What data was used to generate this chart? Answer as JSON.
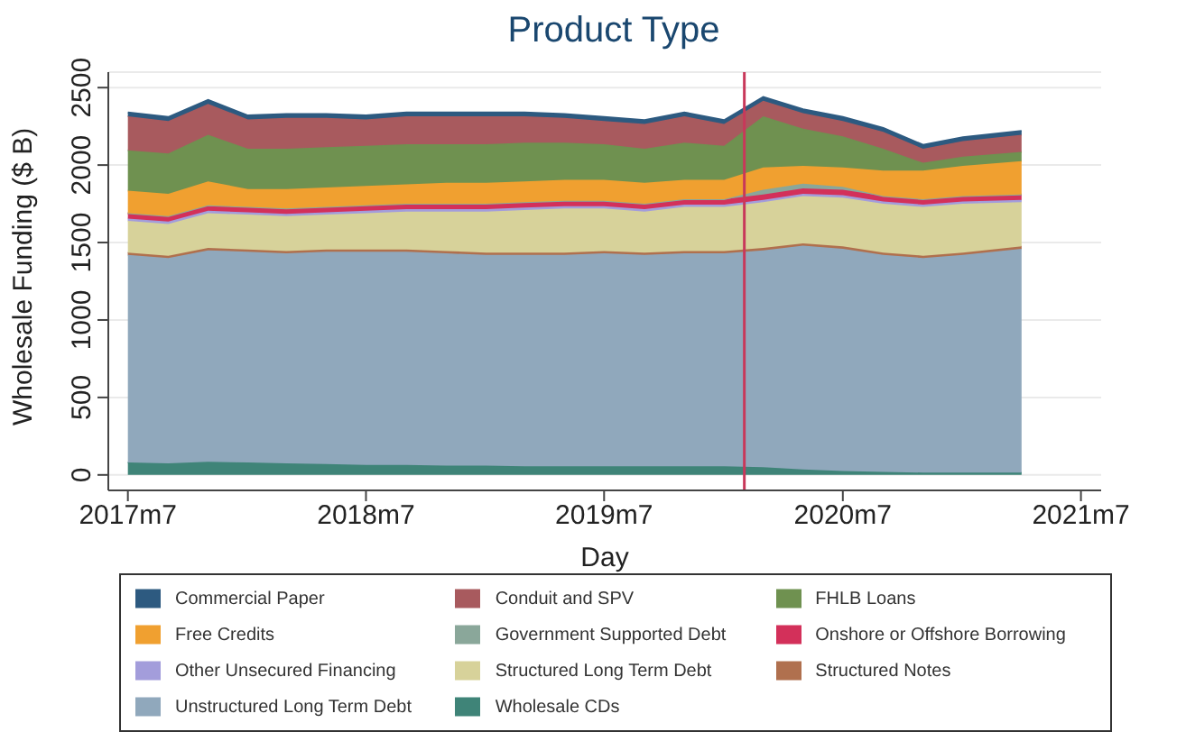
{
  "chart_data": {
    "type": "area",
    "stacked": true,
    "title": "Product Type",
    "xlabel": "Day",
    "ylabel": "Wholesale Funding ($ B)",
    "x": [
      "2017-07",
      "2017-09",
      "2017-11",
      "2018-01",
      "2018-03",
      "2018-05",
      "2018-07",
      "2018-09",
      "2018-11",
      "2019-01",
      "2019-03",
      "2019-05",
      "2019-07",
      "2019-09",
      "2019-11",
      "2020-01",
      "2020-03",
      "2020-05",
      "2020-07",
      "2020-09",
      "2020-11",
      "2021-01",
      "2021-04"
    ],
    "xlim": [
      "2017-06",
      "2021-08"
    ],
    "xticks": [
      {
        "value": "2017-07",
        "label": "2017m7"
      },
      {
        "value": "2018-07",
        "label": "2018m7"
      },
      {
        "value": "2019-07",
        "label": "2019m7"
      },
      {
        "value": "2020-07",
        "label": "2020m7"
      },
      {
        "value": "2021-07",
        "label": "2021m7"
      }
    ],
    "ylim": [
      -100,
      2600
    ],
    "yticks": [
      0,
      500,
      1000,
      1500,
      2000,
      2500
    ],
    "grid": "y",
    "legend": "bottom",
    "ref_lines": [
      {
        "axis": "x",
        "value": "2020-02",
        "color": "#c8385a"
      }
    ],
    "series": [
      {
        "name": "Wholesale CDs",
        "color": "#3f8478",
        "values": [
          80,
          75,
          85,
          80,
          75,
          70,
          65,
          65,
          60,
          60,
          55,
          55,
          55,
          55,
          55,
          55,
          50,
          35,
          25,
          20,
          15,
          15,
          15
        ]
      },
      {
        "name": "Unstructured Long Term Debt",
        "color": "#90a8bc",
        "values": [
          1340,
          1325,
          1365,
          1360,
          1355,
          1370,
          1375,
          1375,
          1370,
          1360,
          1365,
          1365,
          1375,
          1365,
          1375,
          1375,
          1400,
          1445,
          1435,
          1400,
          1385,
          1405,
          1445
        ]
      },
      {
        "name": "Structured Notes",
        "color": "#b0704e",
        "values": [
          15,
          15,
          15,
          15,
          15,
          15,
          15,
          15,
          15,
          15,
          15,
          15,
          15,
          15,
          15,
          15,
          15,
          15,
          15,
          15,
          15,
          15,
          15
        ]
      },
      {
        "name": "Structured Long Term Debt",
        "color": "#d7d29a",
        "values": [
          205,
          205,
          225,
          225,
          225,
          225,
          235,
          245,
          255,
          265,
          275,
          285,
          275,
          265,
          285,
          285,
          295,
          305,
          315,
          315,
          315,
          315,
          285
        ]
      },
      {
        "name": "Other Unsecured Financing",
        "color": "#a39ddb",
        "values": [
          15,
          15,
          15,
          15,
          15,
          15,
          15,
          15,
          15,
          15,
          15,
          15,
          15,
          15,
          15,
          15,
          15,
          15,
          15,
          15,
          15,
          15,
          15
        ]
      },
      {
        "name": "Onshore or Offshore Borrowing",
        "color": "#d3305a",
        "values": [
          35,
          35,
          35,
          35,
          35,
          35,
          35,
          35,
          35,
          35,
          35,
          35,
          35,
          35,
          35,
          35,
          35,
          35,
          35,
          35,
          35,
          35,
          35
        ]
      },
      {
        "name": "Government Supported Debt",
        "color": "#8aa79a",
        "values": [
          0,
          0,
          0,
          0,
          0,
          0,
          0,
          0,
          0,
          0,
          0,
          0,
          0,
          0,
          0,
          0,
          30,
          30,
          20,
          0,
          0,
          0,
          0
        ]
      },
      {
        "name": "Free Credits",
        "color": "#f0a030",
        "values": [
          145,
          145,
          155,
          115,
          125,
          125,
          125,
          125,
          135,
          135,
          135,
          135,
          135,
          135,
          125,
          125,
          145,
          115,
          125,
          165,
          185,
          195,
          215
        ]
      },
      {
        "name": "FHLB Loans",
        "color": "#6f9150",
        "values": [
          260,
          260,
          300,
          260,
          260,
          260,
          260,
          260,
          250,
          250,
          250,
          240,
          230,
          220,
          240,
          220,
          330,
          240,
          200,
          140,
          50,
          60,
          60
        ]
      },
      {
        "name": "Conduit and SPV",
        "color": "#a85a5e",
        "values": [
          220,
          210,
          200,
          190,
          200,
          190,
          170,
          180,
          180,
          180,
          170,
          160,
          150,
          160,
          170,
          140,
          100,
          100,
          100,
          110,
          90,
          100,
          110
        ]
      },
      {
        "name": "Commercial Paper",
        "color": "#2d5a80",
        "values": [
          25,
          25,
          25,
          25,
          25,
          25,
          25,
          25,
          25,
          25,
          25,
          25,
          25,
          25,
          25,
          25,
          25,
          25,
          25,
          25,
          25,
          25,
          25
        ]
      }
    ]
  }
}
